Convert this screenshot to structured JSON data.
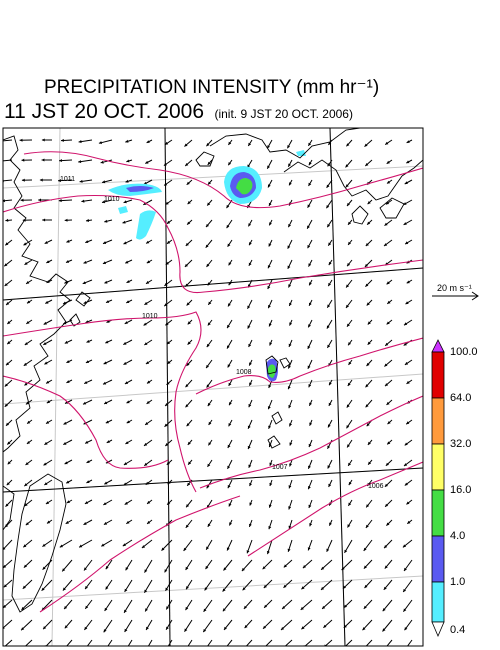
{
  "title": "PRECIPITATION INTENSITY (mm hr⁻¹)",
  "subtitle": {
    "valid_time": "11 JST 20 OCT. 2006",
    "init_time": "(init. 9 JST 20 OCT. 2006)"
  },
  "wind_scale": {
    "label": "20 m s⁻¹"
  },
  "colorbar": {
    "labels": [
      "100.0",
      "64.0",
      "32.0",
      "16.0",
      "4.0",
      "1.0",
      "0.4"
    ],
    "colors": [
      "#e00000",
      "#ff9a3c",
      "#ffff66",
      "#44dd44",
      "#5a5af0",
      "#55eeff"
    ],
    "over_color": "#cc33ff"
  },
  "isobars": {
    "color": "#d0146c",
    "labels": [
      "1011",
      "1010",
      "1010",
      "1008",
      "1007",
      "1006"
    ]
  },
  "colors": {
    "frame": "#000000",
    "grid": "#c8c8c8",
    "coast": "#000000",
    "wind": "#000000"
  }
}
